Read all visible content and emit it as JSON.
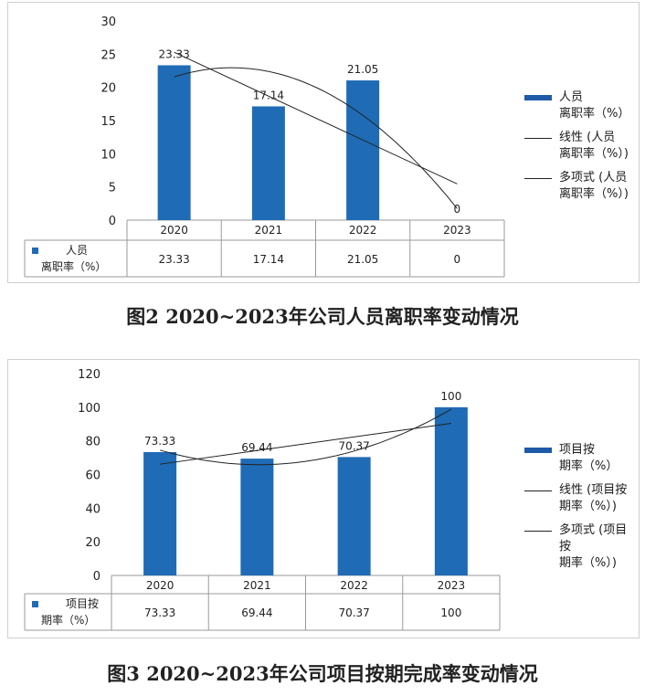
{
  "chart_data": [
    {
      "type": "bar",
      "categories": [
        "2020",
        "2021",
        "2022",
        "2023"
      ],
      "series": [
        {
          "name": "人员\n离职率（%）",
          "values": [
            23.33,
            17.14,
            21.05,
            0
          ]
        }
      ],
      "trendlines": [
        {
          "name": "线性 (人员\n离职率（%）)",
          "kind": "linear"
        },
        {
          "name": "多项式 (人员\n离职率（%）)",
          "kind": "polynomial"
        }
      ],
      "ylim": [
        0,
        30
      ],
      "yticks": [
        "0",
        "5",
        "10",
        "15",
        "20",
        "25",
        "30"
      ],
      "data_labels": [
        "23.33",
        "17.14",
        "21.05",
        "0"
      ],
      "table": {
        "label_line1": "人员",
        "label_line2": "离职率（%）",
        "cells": [
          "23.33",
          "17.14",
          "21.05",
          "0"
        ]
      },
      "legend_position": "right",
      "grid": false,
      "bar_color": "#1f6bb5",
      "caption": "图2   2020~2023年公司人员离职率变动情况"
    },
    {
      "type": "bar",
      "categories": [
        "2020",
        "2021",
        "2022",
        "2023"
      ],
      "series": [
        {
          "name": "项目按\n期率（%）",
          "values": [
            73.33,
            69.44,
            70.37,
            100
          ]
        }
      ],
      "trendlines": [
        {
          "name": "线性 (项目按\n期率（%）)",
          "kind": "linear"
        },
        {
          "name": "多项式 (项目按\n期率（%）)",
          "kind": "polynomial"
        }
      ],
      "ylim": [
        0,
        120
      ],
      "yticks": [
        "0",
        "20",
        "40",
        "60",
        "80",
        "100",
        "120"
      ],
      "data_labels": [
        "73.33",
        "69.44",
        "70.37",
        "100"
      ],
      "table": {
        "label_line1": "项目按",
        "label_line2": "期率（%）",
        "cells": [
          "73.33",
          "69.44",
          "70.37",
          "100"
        ]
      },
      "legend_position": "right",
      "grid": false,
      "bar_color": "#1f6bb5",
      "caption": "图3   2020~2023年公司项目按期完成率变动情况"
    }
  ]
}
